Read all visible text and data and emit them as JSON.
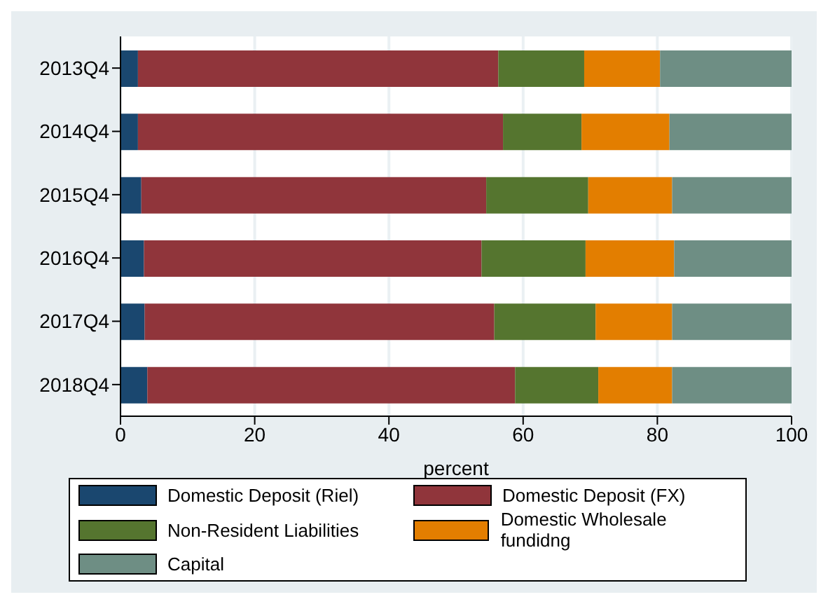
{
  "chart_data": {
    "type": "bar",
    "orientation": "horizontal",
    "stacked": true,
    "xlabel": "percent",
    "categories": [
      "2013Q4",
      "2014Q4",
      "2015Q4",
      "2016Q4",
      "2017Q4",
      "2018Q4"
    ],
    "series": [
      {
        "name": "Domestic Deposit (Riel)",
        "color": "#1a476f",
        "values": [
          2.6,
          2.6,
          3.1,
          3.5,
          3.6,
          4.0
        ]
      },
      {
        "name": "Domestic Deposit (FX)",
        "color": "#90353b",
        "values": [
          53.7,
          54.4,
          51.4,
          50.3,
          52.1,
          54.8
        ]
      },
      {
        "name": "Non-Resident Liabilities",
        "color": "#55752f",
        "values": [
          12.8,
          11.7,
          15.2,
          15.5,
          15.1,
          12.4
        ]
      },
      {
        "name": "Domestic Wholesale fundidng",
        "color": "#e37e00",
        "values": [
          11.3,
          13.1,
          12.5,
          13.2,
          11.4,
          11.0
        ]
      },
      {
        "name": "Capital",
        "color": "#6e8e84",
        "values": [
          19.6,
          18.2,
          17.8,
          17.5,
          17.8,
          17.8
        ]
      }
    ],
    "xlim": [
      0,
      100
    ],
    "xticks": [
      0,
      20,
      40,
      60,
      80,
      100
    ],
    "grid": "x",
    "legend": "bottom"
  }
}
